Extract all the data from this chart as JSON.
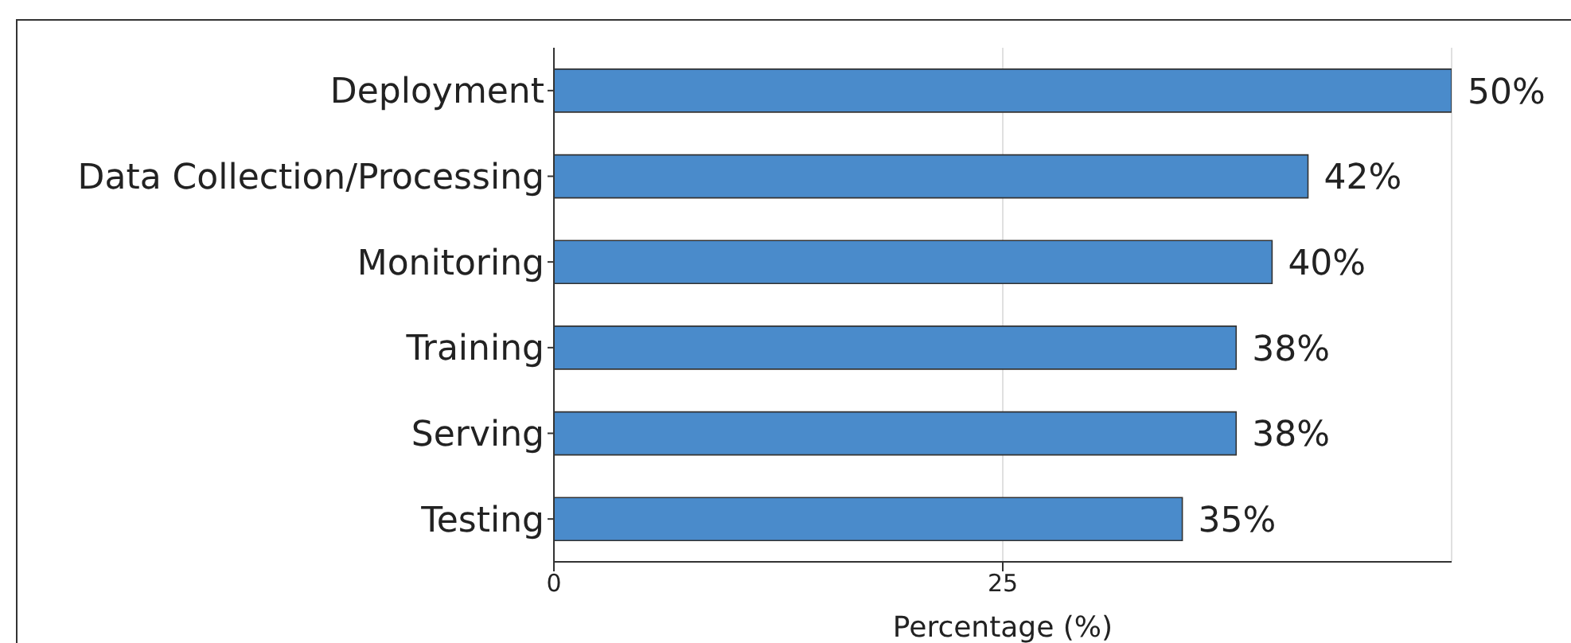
{
  "chart_data": {
    "type": "bar",
    "orientation": "horizontal",
    "categories": [
      "Deployment",
      "Data Collection/Processing",
      "Monitoring",
      "Training",
      "Serving",
      "Testing"
    ],
    "values": [
      50,
      42,
      40,
      38,
      38,
      35
    ],
    "value_labels": [
      "50%",
      "42%",
      "40%",
      "38%",
      "38%",
      "35%"
    ],
    "color": "#4a8bcb",
    "xlabel": "Percentage (%)",
    "xlim": [
      0,
      50
    ],
    "xticks": [
      0,
      25
    ],
    "grid": "x"
  }
}
